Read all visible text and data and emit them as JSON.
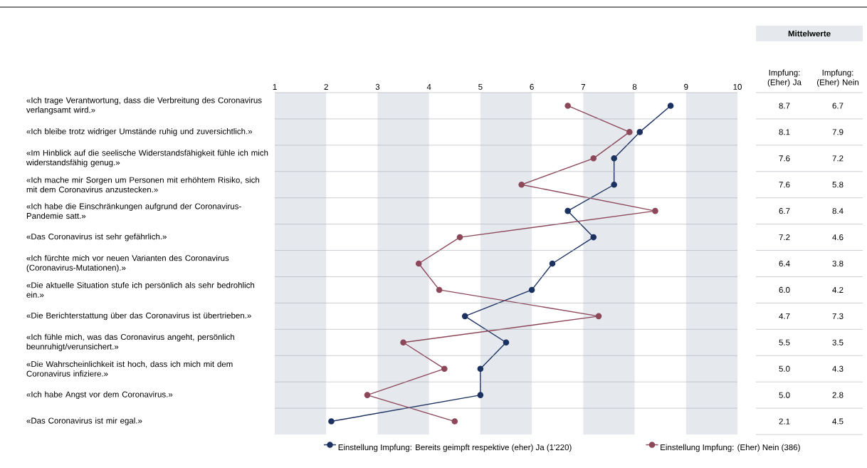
{
  "chart_data": {
    "type": "line",
    "orientation": "horizontal",
    "categories": [
      "«Ich trage Verantwortung, dass die Verbreitung des Coronavirus verlangsamt wird.»",
      "«Ich bleibe trotz widriger Umstände ruhig und zuversichtlich.»",
      "«Im Hinblick auf die seelische Widerstandsfähigkeit fühle ich mich widerstandsfähig genug.»",
      "«Ich mache mir Sorgen um Personen mit erhöhtem Risiko, sich mit dem Coronavirus anzustecken.»",
      "«Ich habe die Einschränkungen aufgrund der Coronavirus-Pandemie satt.»",
      "«Das Coronavirus ist sehr gefährlich.»",
      "«Ich fürchte mich vor neuen Varianten des Coronavirus (Coronavirus-Mutationen).»",
      "«Die aktuelle Situation stufe ich persönlich als sehr bedrohlich ein.»",
      "«Die Berichterstattung über das Coronavirus ist übertrieben.»",
      "«Ich fühle mich, was das Coronavirus angeht, persönlich beunruhigt/verunsichert.»",
      "«Die Wahrscheinlichkeit ist hoch, dass ich mich mit dem Coronavirus infiziere.»",
      "«Ich habe Angst vor dem Coronavirus.»",
      "«Das Coronavirus ist mir egal.»"
    ],
    "series": [
      {
        "name": "Einstellung Impfung: Bereits geimpft respektive (eher) Ja (1'220)",
        "color": "#1b3160",
        "values": [
          8.7,
          8.1,
          7.6,
          7.6,
          6.7,
          7.2,
          6.4,
          6.0,
          4.7,
          5.5,
          5.0,
          5.0,
          2.1
        ],
        "value_labels": [
          "8.7",
          "8.1",
          "7.6",
          "7.6",
          "6.7",
          "7.2",
          "6.4",
          "6.0",
          "4.7",
          "5.5",
          "5.0",
          "5.0",
          "2.1"
        ]
      },
      {
        "name": "Einstellung Impfung: (Eher) Nein (386)",
        "color": "#8c4759",
        "values": [
          6.7,
          7.9,
          7.2,
          5.8,
          8.4,
          4.6,
          3.8,
          4.2,
          7.3,
          3.5,
          4.3,
          2.8,
          4.5
        ],
        "value_labels": [
          "6.7",
          "7.9",
          "7.2",
          "5.8",
          "8.4",
          "4.6",
          "3.8",
          "4.2",
          "7.3",
          "3.5",
          "4.3",
          "2.8",
          "4.5"
        ]
      }
    ],
    "xlim": [
      1,
      10
    ],
    "xticks": [
      1,
      2,
      3,
      4,
      5,
      6,
      7,
      8,
      9,
      10
    ],
    "bands": [
      {
        "axis": "x",
        "from": 1,
        "to": 2,
        "color": "#e5e9ee"
      },
      {
        "axis": "x",
        "from": 3,
        "to": 4,
        "color": "#e5e9ee"
      },
      {
        "axis": "x",
        "from": 5,
        "to": 6,
        "color": "#e5e9ee"
      },
      {
        "axis": "x",
        "from": 7,
        "to": 8,
        "color": "#e5e9ee"
      },
      {
        "axis": "x",
        "from": 9,
        "to": 10,
        "color": "#e5e9ee"
      }
    ],
    "annotations": [
      "Mittelwerte",
      "Impfung: (Eher) Ja",
      "Impfung: (Eher) Nein"
    ],
    "marker": "circle",
    "line_style": "solid",
    "legend": "bottom",
    "grid": false
  }
}
